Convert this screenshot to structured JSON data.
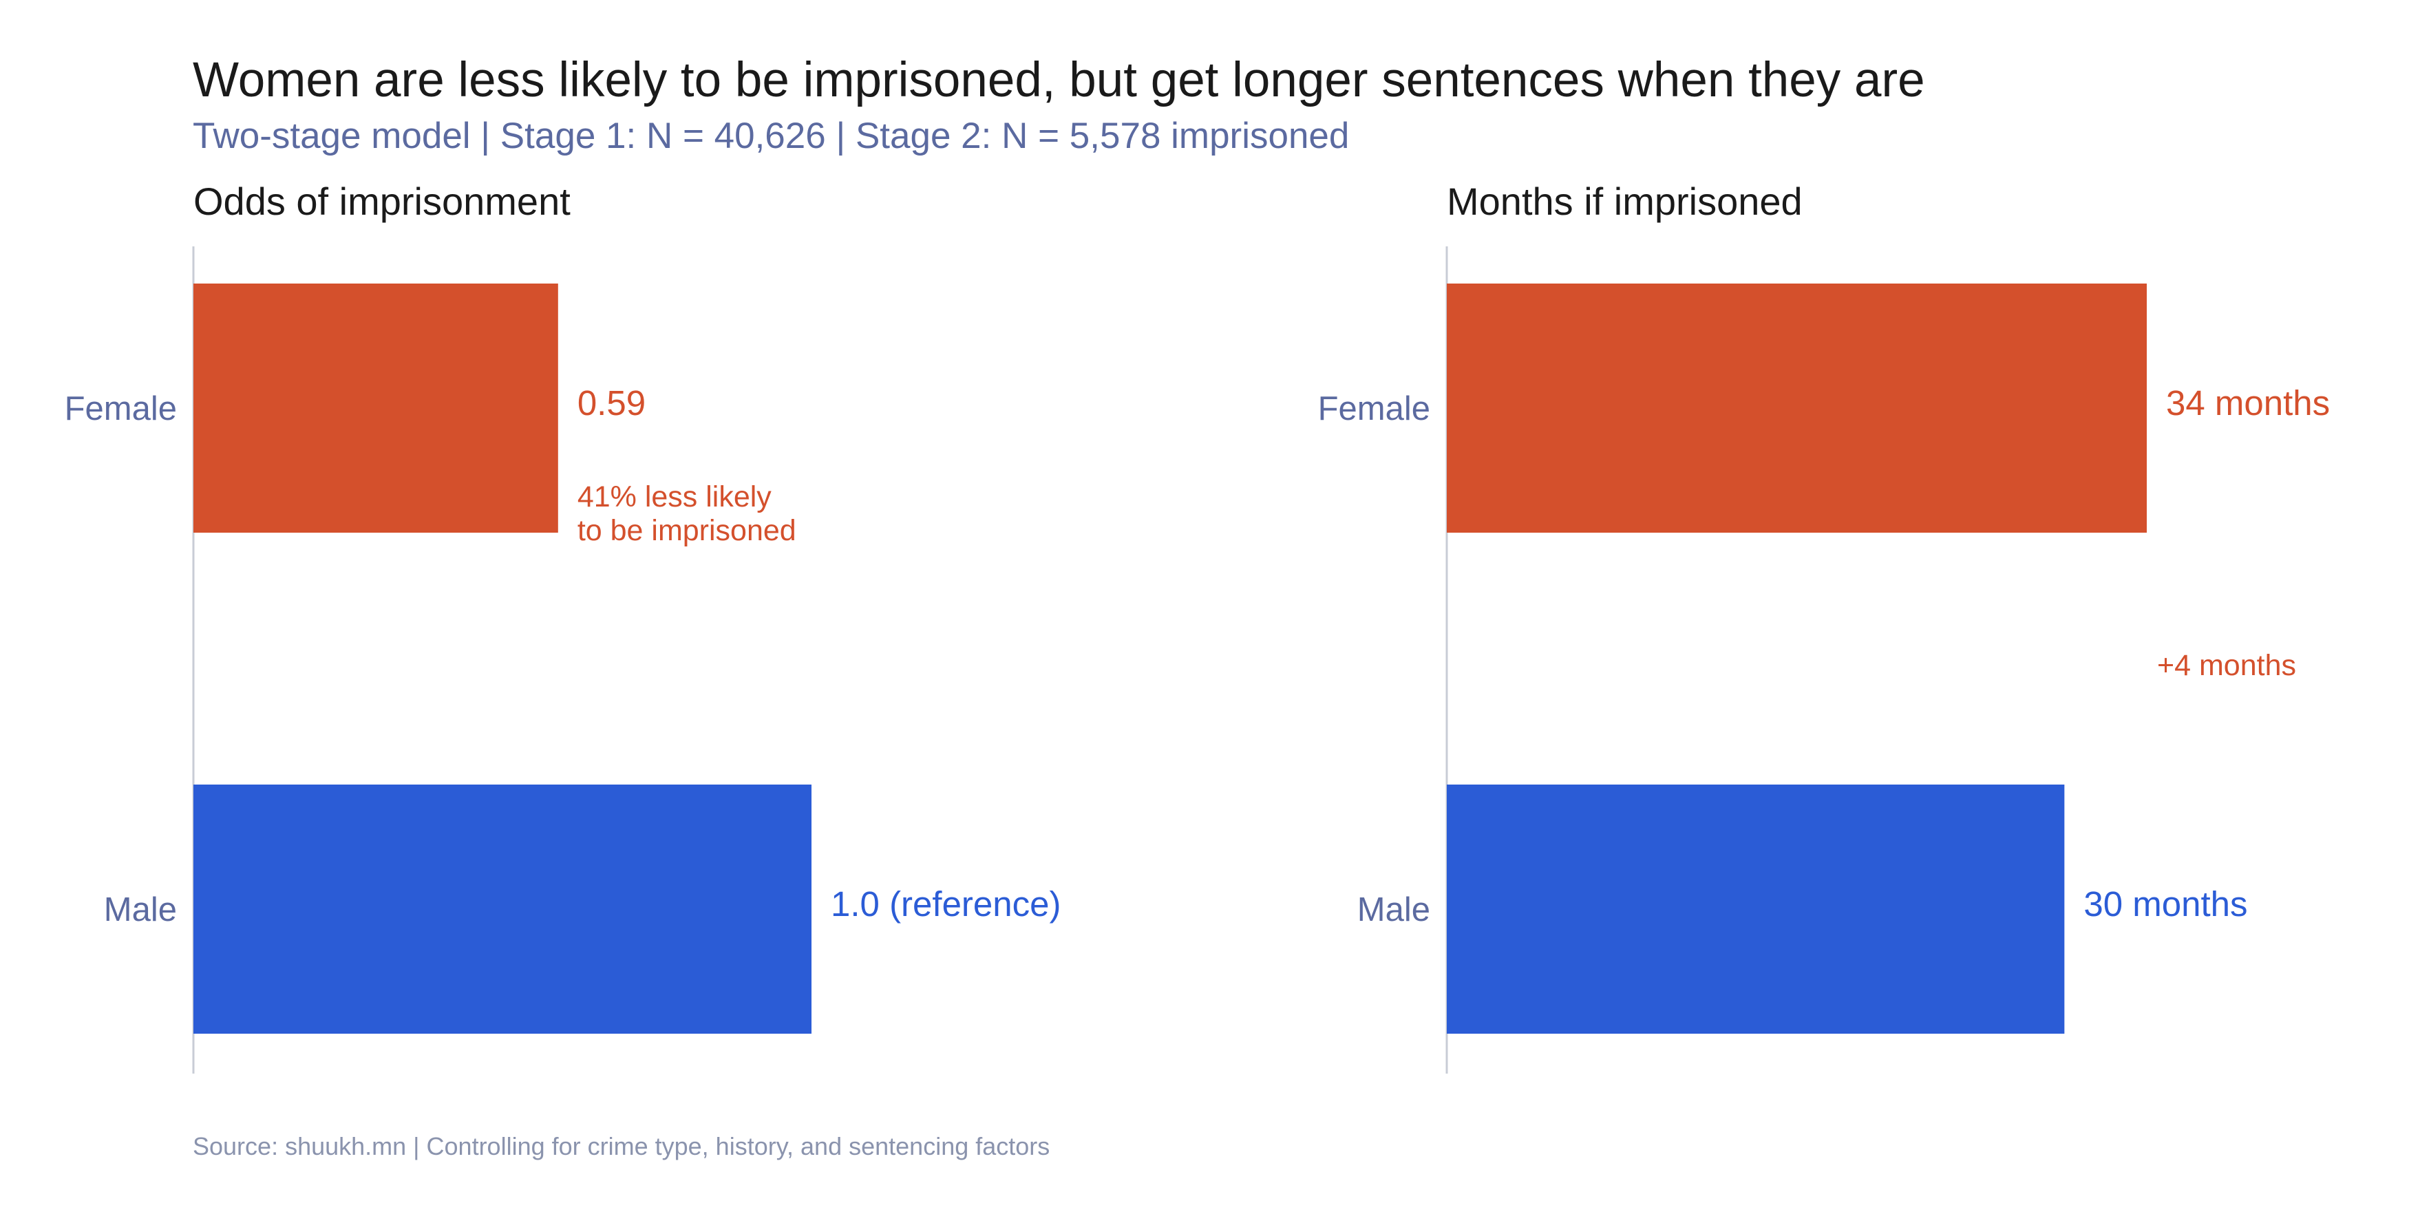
{
  "title": "Women are less likely to be imprisoned, but get longer sentences when they are",
  "subtitle": "Two-stage model | Stage 1: N = 40,626 | Stage 2: N = 5,578 imprisoned",
  "source": "Source: shuukh.mn | Controlling for crime type, history, and sentencing factors",
  "colors": {
    "female": "#d4502c",
    "male": "#2b5cd6",
    "category_label": "#5b6aa0",
    "subtitle": "#5b6aa0",
    "source": "#8a93ad",
    "axis": "#c8ccd6"
  },
  "chart_data": [
    {
      "type": "bar",
      "orientation": "horizontal",
      "title": "Odds of imprisonment",
      "categories": [
        "Female",
        "Male"
      ],
      "values": [
        0.59,
        1.0
      ],
      "value_labels": [
        "0.59",
        "1.0 (reference)"
      ],
      "xlim": [
        0,
        1.0
      ],
      "grid": false,
      "annotations": [
        {
          "category": "Female",
          "lines": [
            "41% less likely",
            "to be imprisoned"
          ]
        }
      ]
    },
    {
      "type": "bar",
      "orientation": "horizontal",
      "title": "Months if imprisoned",
      "categories": [
        "Female",
        "Male"
      ],
      "values": [
        34,
        30
      ],
      "value_labels": [
        "34 months",
        "30 months"
      ],
      "xlim": [
        0,
        34
      ],
      "grid": false,
      "annotations": [
        {
          "between": [
            "Female",
            "Male"
          ],
          "lines": [
            "+4 months"
          ]
        }
      ]
    }
  ]
}
